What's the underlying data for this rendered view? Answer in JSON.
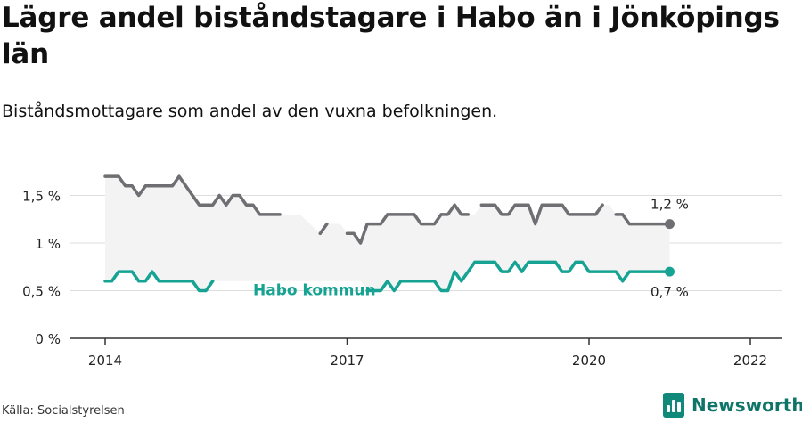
{
  "title": "Lägre andel biståndstagare i Habo än i Jönköpings län",
  "subtitle": "Biståndsmottagare som andel av den vuxna befolkningen.",
  "source": "Källa: Socialstyrelsen",
  "brand": {
    "name": "Newsworthy",
    "logo_icon": "newsworthy-logo-icon"
  },
  "colors": {
    "lan": "#6f6f73",
    "habo": "#16a393",
    "band": "#f3f3f3",
    "grid": "#dedede",
    "axis": "#333333"
  },
  "chart_data": {
    "type": "line",
    "x_tick_labels": [
      "2014",
      "2017",
      "2020",
      "2022"
    ],
    "y_tick_labels": [
      "0 %",
      "0,5 %",
      "1 %",
      "1,5 %"
    ],
    "ylim": [
      0,
      2.0
    ],
    "xlim": [
      "2014-01",
      "2022-01"
    ],
    "grid": true,
    "series": [
      {
        "key": "lan",
        "end_label": "1,2 %",
        "points": [
          [
            "2014-01",
            1.7
          ],
          [
            "2014-02",
            1.7
          ],
          [
            "2014-03",
            1.7
          ],
          [
            "2014-04",
            1.6
          ],
          [
            "2014-05",
            1.6
          ],
          [
            "2014-06",
            1.5
          ],
          [
            "2014-07",
            1.6
          ],
          [
            "2014-08",
            1.6
          ],
          [
            "2014-09",
            1.6
          ],
          [
            "2014-10",
            1.6
          ],
          [
            "2014-11",
            1.6
          ],
          [
            "2014-12",
            1.7
          ],
          [
            "2015-01",
            1.6
          ],
          [
            "2015-02",
            1.5
          ],
          [
            "2015-03",
            1.4
          ],
          [
            "2015-04",
            1.4
          ],
          [
            "2015-05",
            1.4
          ],
          [
            "2015-06",
            1.5
          ],
          [
            "2015-07",
            1.4
          ],
          [
            "2015-08",
            1.5
          ],
          [
            "2015-09",
            1.5
          ],
          [
            "2015-10",
            1.4
          ],
          [
            "2015-11",
            1.4
          ],
          [
            "2015-12",
            1.3
          ],
          [
            "2016-01",
            1.3
          ],
          [
            "2016-02",
            1.3
          ],
          [
            "2016-03",
            1.3
          ],
          [
            "2016-04",
            null
          ],
          [
            "2016-05",
            null
          ],
          [
            "2016-06",
            null
          ],
          [
            "2016-09",
            1.1
          ],
          [
            "2016-10",
            1.2
          ],
          [
            "2016-11",
            null
          ],
          [
            "2016-12",
            null
          ],
          [
            "2017-01",
            1.1
          ],
          [
            "2017-02",
            1.1
          ],
          [
            "2017-03",
            1.0
          ],
          [
            "2017-04",
            1.2
          ],
          [
            "2017-05",
            1.2
          ],
          [
            "2017-06",
            1.2
          ],
          [
            "2017-07",
            1.3
          ],
          [
            "2017-08",
            1.3
          ],
          [
            "2017-09",
            1.3
          ],
          [
            "2017-10",
            1.3
          ],
          [
            "2017-11",
            1.3
          ],
          [
            "2017-12",
            1.2
          ],
          [
            "2018-01",
            1.2
          ],
          [
            "2018-02",
            1.2
          ],
          [
            "2018-03",
            1.3
          ],
          [
            "2018-04",
            1.3
          ],
          [
            "2018-05",
            1.4
          ],
          [
            "2018-06",
            1.3
          ],
          [
            "2018-07",
            1.3
          ],
          [
            "2018-08",
            null
          ],
          [
            "2018-09",
            1.4
          ],
          [
            "2018-10",
            1.4
          ],
          [
            "2018-11",
            1.4
          ],
          [
            "2018-12",
            1.3
          ],
          [
            "2019-01",
            1.3
          ],
          [
            "2019-02",
            1.4
          ],
          [
            "2019-03",
            1.4
          ],
          [
            "2019-04",
            1.4
          ],
          [
            "2019-05",
            1.2
          ],
          [
            "2019-06",
            1.4
          ],
          [
            "2019-07",
            1.4
          ],
          [
            "2019-08",
            1.4
          ],
          [
            "2019-09",
            1.4
          ],
          [
            "2019-10",
            1.3
          ],
          [
            "2019-11",
            1.3
          ],
          [
            "2019-12",
            1.3
          ],
          [
            "2020-01",
            1.3
          ],
          [
            "2020-02",
            1.3
          ],
          [
            "2020-03",
            1.4
          ],
          [
            "2020-04",
            null
          ],
          [
            "2020-05",
            1.3
          ],
          [
            "2020-06",
            1.3
          ],
          [
            "2020-07",
            1.2
          ],
          [
            "2020-08",
            1.2
          ],
          [
            "2020-09",
            1.2
          ],
          [
            "2020-10",
            1.2
          ],
          [
            "2020-11",
            1.2
          ],
          [
            "2020-12",
            1.2
          ],
          [
            "2021-01",
            1.2
          ]
        ]
      },
      {
        "key": "habo",
        "label": "Habo kommun",
        "end_label": "0,7 %",
        "points": [
          [
            "2014-01",
            0.6
          ],
          [
            "2014-02",
            0.6
          ],
          [
            "2014-03",
            0.7
          ],
          [
            "2014-04",
            0.7
          ],
          [
            "2014-05",
            0.7
          ],
          [
            "2014-06",
            0.6
          ],
          [
            "2014-07",
            0.6
          ],
          [
            "2014-08",
            0.7
          ],
          [
            "2014-09",
            0.6
          ],
          [
            "2014-10",
            0.6
          ],
          [
            "2014-11",
            0.6
          ],
          [
            "2014-12",
            0.6
          ],
          [
            "2015-01",
            0.6
          ],
          [
            "2015-02",
            0.6
          ],
          [
            "2015-03",
            0.5
          ],
          [
            "2015-04",
            0.5
          ],
          [
            "2015-05",
            0.6
          ],
          [
            "2015-06",
            null
          ],
          [
            "2015-07",
            null
          ],
          [
            "2015-08",
            null
          ],
          [
            "2015-09",
            null
          ],
          [
            "2015-10",
            null
          ],
          [
            "2015-11",
            null
          ],
          [
            "2015-12",
            null
          ],
          [
            "2016-01",
            null
          ],
          [
            "2016-02",
            null
          ],
          [
            "2016-03",
            null
          ],
          [
            "2016-04",
            null
          ],
          [
            "2016-05",
            null
          ],
          [
            "2016-06",
            null
          ],
          [
            "2016-07",
            null
          ],
          [
            "2016-08",
            null
          ],
          [
            "2016-09",
            null
          ],
          [
            "2016-10",
            null
          ],
          [
            "2016-11",
            null
          ],
          [
            "2016-12",
            null
          ],
          [
            "2017-01",
            null
          ],
          [
            "2017-02",
            null
          ],
          [
            "2017-03",
            null
          ],
          [
            "2017-04",
            0.5
          ],
          [
            "2017-05",
            0.5
          ],
          [
            "2017-06",
            0.5
          ],
          [
            "2017-07",
            0.6
          ],
          [
            "2017-08",
            0.5
          ],
          [
            "2017-09",
            0.6
          ],
          [
            "2017-10",
            0.6
          ],
          [
            "2017-11",
            0.6
          ],
          [
            "2017-12",
            0.6
          ],
          [
            "2018-01",
            0.6
          ],
          [
            "2018-02",
            0.6
          ],
          [
            "2018-03",
            0.5
          ],
          [
            "2018-04",
            0.5
          ],
          [
            "2018-05",
            0.7
          ],
          [
            "2018-06",
            0.6
          ],
          [
            "2018-07",
            0.7
          ],
          [
            "2018-08",
            0.8
          ],
          [
            "2018-09",
            0.8
          ],
          [
            "2018-10",
            0.8
          ],
          [
            "2018-11",
            0.8
          ],
          [
            "2018-12",
            0.7
          ],
          [
            "2019-01",
            0.7
          ],
          [
            "2019-02",
            0.8
          ],
          [
            "2019-03",
            0.7
          ],
          [
            "2019-04",
            0.8
          ],
          [
            "2019-05",
            0.8
          ],
          [
            "2019-06",
            0.8
          ],
          [
            "2019-07",
            0.8
          ],
          [
            "2019-08",
            0.8
          ],
          [
            "2019-09",
            0.7
          ],
          [
            "2019-10",
            0.7
          ],
          [
            "2019-11",
            0.8
          ],
          [
            "2019-12",
            0.8
          ],
          [
            "2020-01",
            0.7
          ],
          [
            "2020-02",
            0.7
          ],
          [
            "2020-03",
            0.7
          ],
          [
            "2020-04",
            0.7
          ],
          [
            "2020-05",
            0.7
          ],
          [
            "2020-06",
            0.6
          ],
          [
            "2020-07",
            0.7
          ],
          [
            "2020-08",
            0.7
          ],
          [
            "2020-09",
            0.7
          ],
          [
            "2020-10",
            0.7
          ],
          [
            "2020-11",
            0.7
          ],
          [
            "2020-12",
            0.7
          ],
          [
            "2021-01",
            0.7
          ]
        ]
      }
    ]
  }
}
